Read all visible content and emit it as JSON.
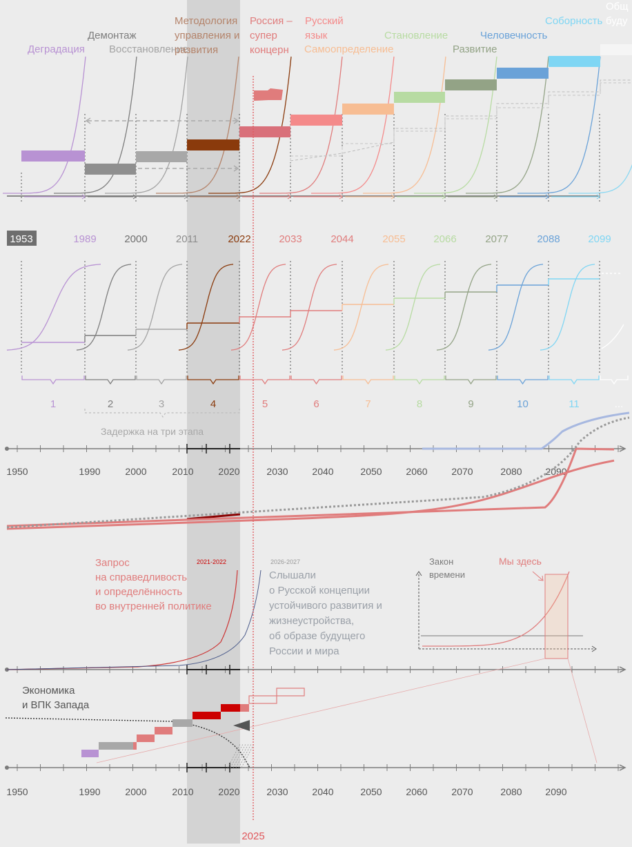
{
  "colors": {
    "background": "#ececec",
    "highlight_band": "#d3d3d3",
    "axis": "#7b7b7b",
    "marker_line": "#e0575b",
    "stages": [
      "#b892d3",
      "#7d7d7d",
      "#a3a3a3",
      "#8a3a0c",
      "#e07c7c",
      "#f48a8a",
      "#f7bd93",
      "#b7dba2",
      "#93a386",
      "#6aa2d8",
      "#7fd6f4",
      "#f0f0f0"
    ]
  },
  "top": {
    "stages": [
      {
        "label": "Деградация",
        "color": "#b892d3"
      },
      {
        "label": "Демонтаж",
        "color": "#7d7d7d"
      },
      {
        "label": "Восстановление",
        "color": "#a3a3a3"
      },
      {
        "label": "Методология управления и развития",
        "lines": [
          "Методология",
          "управления и",
          "развития"
        ],
        "color": "#b4836a"
      },
      {
        "label": "Россия – супер концерн",
        "lines": [
          "Россия –",
          "супер",
          "концерн"
        ],
        "color": "#e07c7c"
      },
      {
        "label": "Русский язык",
        "lines": [
          "Русский",
          "язык"
        ],
        "color": "#f48a8a"
      },
      {
        "label": "Самоопределение",
        "color": "#f7bd93"
      },
      {
        "label": "Становление",
        "color": "#b7dba2"
      },
      {
        "label": "Развитие",
        "color": "#93a386"
      },
      {
        "label": "Человечность",
        "color": "#6aa2d8"
      },
      {
        "label": "Соборность",
        "color": "#7fd6f4"
      },
      {
        "label": "Общество будущего",
        "lines": [
          "Общ",
          "буду"
        ],
        "color": "#ffffff"
      }
    ],
    "years": [
      {
        "value": "1953",
        "color": "#ffffff",
        "boxed": true
      },
      {
        "value": "1989",
        "color": "#b892d3"
      },
      {
        "value": "2000",
        "color": "#6e6e6e"
      },
      {
        "value": "2011",
        "color": "#8c8c8c"
      },
      {
        "value": "2022",
        "color": "#8a3a0c"
      },
      {
        "value": "2033",
        "color": "#e07c7c"
      },
      {
        "value": "2044",
        "color": "#e07c7c"
      },
      {
        "value": "2055",
        "color": "#f7bd93"
      },
      {
        "value": "2066",
        "color": "#b7dba2"
      },
      {
        "value": "2077",
        "color": "#93a386"
      },
      {
        "value": "2088",
        "color": "#6aa2d8"
      },
      {
        "value": "2099",
        "color": "#7fd6f4"
      }
    ]
  },
  "middle": {
    "stage_numbers": [
      "1",
      "2",
      "3",
      "4",
      "5",
      "6",
      "7",
      "8",
      "9",
      "10",
      "11",
      "..."
    ],
    "delay_label": "Задержка на три этапа"
  },
  "timeline": {
    "years": [
      "1950",
      "1990",
      "2000",
      "2010",
      "2020",
      "2030",
      "2040",
      "2050",
      "2060",
      "2070",
      "2080",
      "2090"
    ]
  },
  "lower": {
    "request_text": [
      "Запрос",
      "на справедливость",
      "и определённость",
      "во внутренней политике"
    ],
    "tag_2021": "2021-2022",
    "tag_2026": "2026-2027",
    "heard_text": [
      "Слышали",
      "о Русской концепции",
      "устойчивого развития и",
      "жизнеустройства,",
      "об образе будущего",
      "России и мира"
    ],
    "inset_axis_label": [
      "Закон",
      "времени"
    ],
    "inset_marker": "Мы здесь"
  },
  "bottom": {
    "economy_label": [
      "Экономика",
      "и ВПК Запада"
    ]
  },
  "marker_year": "2025"
}
